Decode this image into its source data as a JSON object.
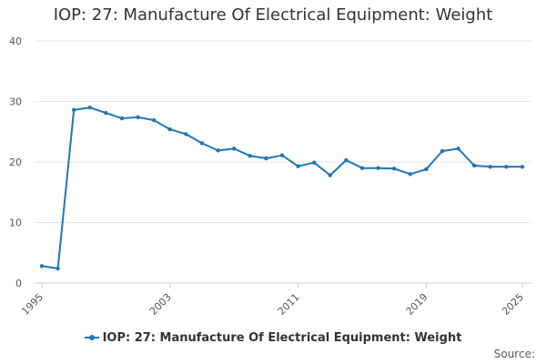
{
  "chart_data": {
    "type": "line",
    "title": "IOP: 27: Manufacture Of Electrical Equipment: Weight",
    "xlabel": "",
    "ylabel": "",
    "xlim": [
      1995,
      2025
    ],
    "ylim": [
      0,
      40
    ],
    "y_ticks": [
      0,
      10,
      20,
      30,
      40
    ],
    "x_ticks": [
      1995,
      2003,
      2011,
      2019,
      2025
    ],
    "grid": true,
    "legend_position": "bottom",
    "series": [
      {
        "name": "IOP: 27: Manufacture Of Electrical Equipment: Weight",
        "color": "#1f77b4",
        "x": [
          1995,
          1996,
          1997,
          1998,
          1999,
          2000,
          2001,
          2002,
          2003,
          2004,
          2005,
          2006,
          2007,
          2008,
          2009,
          2010,
          2011,
          2012,
          2013,
          2014,
          2015,
          2016,
          2017,
          2018,
          2019,
          2020,
          2021,
          2022,
          2023,
          2024,
          2025
        ],
        "values": [
          2.8,
          2.4,
          28.6,
          29.0,
          28.1,
          27.2,
          27.4,
          26.9,
          25.4,
          24.6,
          23.1,
          21.9,
          22.2,
          21.0,
          20.6,
          21.1,
          19.3,
          19.9,
          17.8,
          20.3,
          19.0,
          19.0,
          18.9,
          18.0,
          18.8,
          21.8,
          22.2,
          19.4,
          19.2,
          19.2,
          19.2
        ]
      }
    ],
    "source_label": "Source:"
  }
}
